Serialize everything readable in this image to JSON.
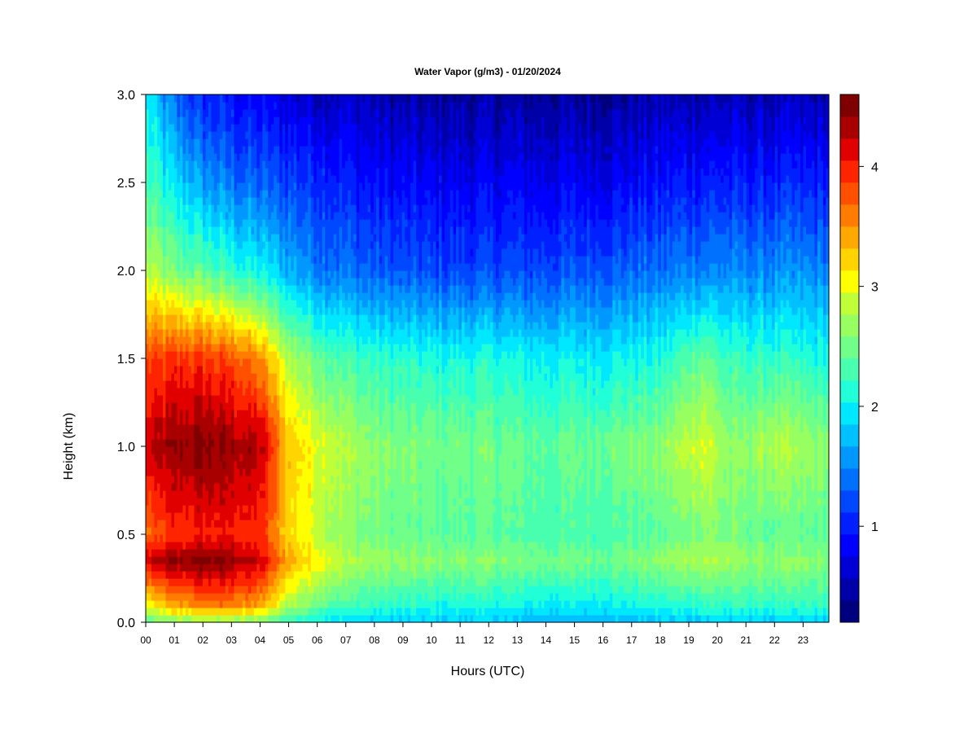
{
  "chart_data": {
    "type": "heatmap",
    "title": "Water Vapor (g/m3) - 01/20/2024",
    "xlabel": "Hours (UTC)",
    "ylabel": "Height (km)",
    "x_ticks": [
      "00",
      "01",
      "02",
      "03",
      "04",
      "05",
      "06",
      "07",
      "08",
      "09",
      "10",
      "11",
      "12",
      "13",
      "14",
      "15",
      "16",
      "17",
      "18",
      "19",
      "20",
      "21",
      "22",
      "23"
    ],
    "x_range": [
      0,
      23.9
    ],
    "y_ticks": [
      "0.0",
      "0.5",
      "1.0",
      "1.5",
      "2.0",
      "2.5",
      "3.0"
    ],
    "y_range": [
      0,
      3.0
    ],
    "colorbar": {
      "ticks": [
        "1",
        "2",
        "3",
        "4"
      ],
      "range": [
        0.2,
        4.6
      ],
      "levels": 22,
      "colors": [
        "#00007f",
        "#0000a8",
        "#0000d4",
        "#0000ff",
        "#0020ff",
        "#0048ff",
        "#0070ff",
        "#0098ff",
        "#00c0ff",
        "#00e8ff",
        "#20ffd8",
        "#48ffb0",
        "#70ff88",
        "#98ff60",
        "#c0ff38",
        "#ffff00",
        "#ffd400",
        "#ffa800",
        "#ff7c00",
        "#ff5000",
        "#ff2400",
        "#e00000",
        "#a80000",
        "#7f0000"
      ]
    },
    "grid": false,
    "legend": "right colorbar",
    "description_values": {
      "times_hr": [
        0,
        1,
        2,
        3,
        4,
        5,
        6,
        7,
        8,
        10,
        12,
        14,
        16,
        18,
        19.5,
        20.5,
        22,
        23.9
      ],
      "heights_km": [
        0.0,
        0.1,
        0.35,
        0.5,
        1.0,
        1.5,
        2.0,
        2.5,
        3.0
      ],
      "values": [
        [
          2.4,
          3.0,
          4.2,
          3.6,
          4.2,
          3.8,
          2.8,
          2.3,
          2.0
        ],
        [
          2.6,
          3.4,
          4.4,
          3.9,
          4.4,
          3.9,
          2.5,
          1.9,
          1.3
        ],
        [
          2.6,
          3.6,
          4.5,
          4.0,
          4.5,
          3.9,
          2.4,
          1.6,
          1.0
        ],
        [
          2.6,
          3.6,
          4.4,
          4.0,
          4.4,
          3.8,
          2.2,
          1.4,
          0.9
        ],
        [
          2.5,
          3.4,
          4.2,
          3.9,
          4.3,
          3.5,
          2.0,
          1.3,
          0.8
        ],
        [
          2.2,
          2.8,
          3.4,
          3.2,
          3.3,
          2.8,
          1.7,
          1.2,
          0.7
        ],
        [
          2.0,
          2.5,
          3.1,
          2.9,
          3.0,
          2.5,
          1.5,
          1.1,
          0.6
        ],
        [
          1.9,
          2.3,
          2.8,
          2.6,
          2.8,
          2.3,
          1.4,
          1.0,
          0.6
        ],
        [
          1.8,
          2.2,
          2.7,
          2.5,
          2.6,
          2.2,
          1.3,
          0.9,
          0.5
        ],
        [
          1.8,
          2.1,
          2.6,
          2.4,
          2.5,
          2.1,
          1.2,
          0.8,
          0.4
        ],
        [
          1.8,
          2.1,
          2.6,
          2.4,
          2.5,
          2.1,
          1.2,
          0.8,
          0.4
        ],
        [
          1.7,
          2.0,
          2.5,
          2.3,
          2.4,
          2.0,
          1.2,
          0.8,
          0.4
        ],
        [
          1.7,
          2.0,
          2.5,
          2.3,
          2.5,
          2.0,
          1.3,
          0.8,
          0.4
        ],
        [
          1.8,
          2.1,
          2.6,
          2.4,
          2.6,
          2.1,
          1.4,
          0.9,
          0.5
        ],
        [
          1.8,
          2.2,
          2.8,
          2.6,
          3.0,
          2.5,
          1.5,
          1.0,
          0.5
        ],
        [
          1.8,
          2.2,
          2.7,
          2.5,
          2.6,
          2.2,
          1.5,
          1.0,
          0.5
        ],
        [
          1.8,
          2.2,
          2.6,
          2.4,
          2.8,
          2.2,
          1.5,
          1.0,
          0.5
        ],
        [
          1.8,
          2.2,
          2.6,
          2.4,
          2.6,
          2.1,
          1.5,
          1.0,
          0.5
        ]
      ]
    }
  }
}
